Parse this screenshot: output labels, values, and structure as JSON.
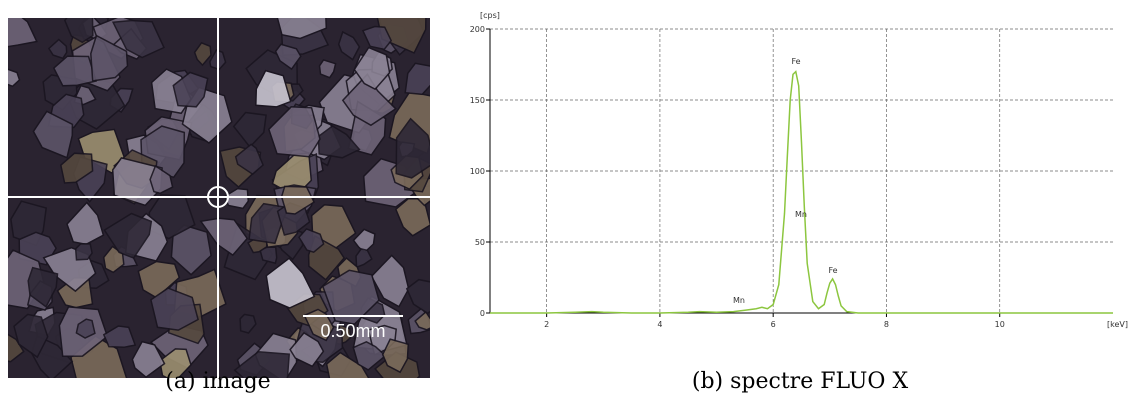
{
  "image": {
    "scale_bar": "0.50mm",
    "caption": "(a) image"
  },
  "chart_data": {
    "type": "line",
    "caption": "(b) spectre FLUO X",
    "xlabel": "[keV]",
    "ylabel": "[cps]",
    "x": [
      1.0,
      1.5,
      2.0,
      2.5,
      2.8,
      3.0,
      3.5,
      4.0,
      4.5,
      4.7,
      5.0,
      5.3,
      5.5,
      5.7,
      5.8,
      5.9,
      6.0,
      6.1,
      6.2,
      6.25,
      6.3,
      6.35,
      6.4,
      6.45,
      6.5,
      6.55,
      6.6,
      6.7,
      6.8,
      6.9,
      6.95,
      7.0,
      7.05,
      7.1,
      7.15,
      7.2,
      7.3,
      7.5,
      8.0,
      9.0,
      10.0,
      11.0,
      12.0
    ],
    "series": [
      {
        "color": "#8cc63f",
        "values": [
          0,
          0,
          0,
          0.5,
          1,
          0.5,
          0,
          0,
          0.5,
          1,
          0.5,
          1,
          2,
          3,
          4,
          3,
          6,
          20,
          70,
          110,
          150,
          168,
          170,
          160,
          120,
          75,
          35,
          8,
          3,
          6,
          14,
          21,
          24,
          20,
          12,
          5,
          1,
          0,
          0,
          0,
          0,
          0,
          0
        ]
      }
    ],
    "xlim": [
      1,
      12
    ],
    "ylim": [
      0,
      200
    ],
    "xticks": [
      2,
      4,
      6,
      8,
      10
    ],
    "yticks": [
      0,
      50,
      100,
      150,
      200
    ],
    "grid": true,
    "annotations": [
      "Fe",
      "Mn",
      "Mn",
      "Fe"
    ]
  }
}
